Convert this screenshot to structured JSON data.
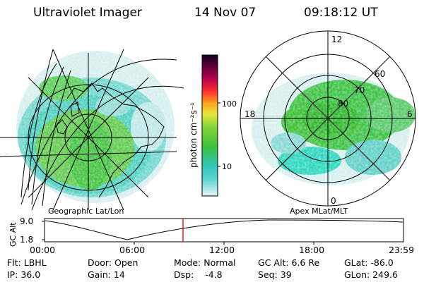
{
  "header": {
    "instrument": "Ultraviolet Imager",
    "date": "14 Nov 07",
    "time": "09:18:12 UT"
  },
  "colorbar": {
    "unit_label": "photon cm⁻²s⁻¹",
    "ticks": [
      "100",
      "10"
    ]
  },
  "polar": {
    "mlt_labels": [
      "12",
      "18",
      "6",
      "0"
    ],
    "mlat_labels": [
      "60",
      "70",
      "80"
    ]
  },
  "captions": {
    "geographic": "Geographic Lat/Lon",
    "apex": "Apex MLat/MLT"
  },
  "altitude_plot": {
    "ylabel": "GC Alt",
    "yticks": [
      "9.0",
      "1.8"
    ],
    "xticks": [
      "00:00",
      "06:00",
      "12:00",
      "18:00",
      "23:59"
    ]
  },
  "params": {
    "row1": {
      "flt": "Flt: LBHL",
      "door": "Door: Open",
      "mode": "Mode: Normal",
      "gcalt": "GC Alt: 6.6 Re",
      "glat": "GLat: -86.0"
    },
    "row2": {
      "ip": "IP: 36.0",
      "gain": "Gain: 14",
      "dsp": "Dsp:    -4.8",
      "seq": "Seq: 39",
      "glon": "GLon: 249.6"
    }
  },
  "colors": {
    "aurora_green": "#33c43a",
    "aurora_cyan": "#2ed8d0",
    "aurora_pale": "#cfeeee",
    "marker_red": "#e00000"
  }
}
